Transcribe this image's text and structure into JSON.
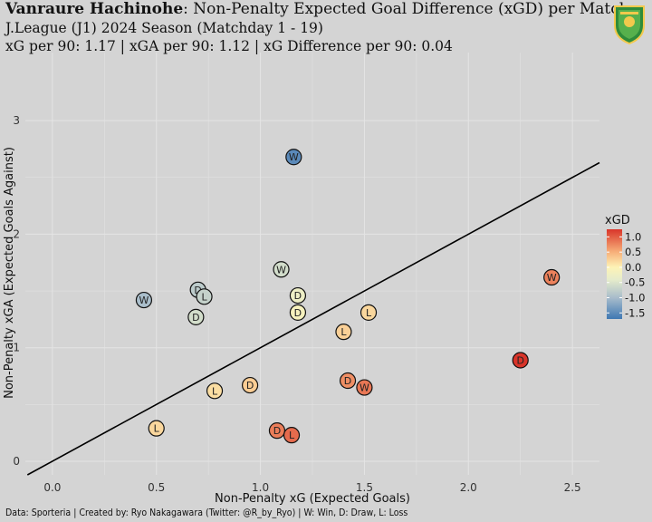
{
  "header": {
    "team": "Vanraure Hachinohe",
    "title_rest": ": Non-Penalty Expected Goal Difference (xGD) per Match",
    "subtitle1": "J.League (J1) 2024 Season (Matchday 1 - 19)",
    "subtitle2": "xG per 90: 1.17 | xGA per 90: 1.12 | xG Difference per 90: 0.04"
  },
  "caption": "Data: Sporteria | Created by: Ryo Nakagawara (Twitter: @R_by_Ryo) | W: Win, D: Draw, L: Loss",
  "colors": {
    "background": "#d4d4d4",
    "grid": "#e4e4e4",
    "line": "#000000"
  },
  "chart_data": {
    "type": "scatter",
    "xlabel": "Non-Penalty xG (Expected Goals)",
    "ylabel": "Non-Penalty xGA (Expected Goals Against)",
    "xlim": [
      -0.13,
      2.63
    ],
    "ylim": [
      -0.12,
      3.6
    ],
    "x_ticks": [
      0.0,
      0.5,
      1.0,
      1.5,
      2.0,
      2.5
    ],
    "x_tick_labels": [
      "0.0",
      "0.5",
      "1.0",
      "1.5",
      "2.0",
      "2.5"
    ],
    "y_ticks": [
      0,
      1,
      2,
      3
    ],
    "y_tick_labels": [
      "0",
      "1",
      "2",
      "3"
    ],
    "reference_line": {
      "slope": 1,
      "intercept": 0
    },
    "legend": {
      "title": "xGD",
      "position": "right",
      "ticks": [
        1.0,
        0.5,
        0.0,
        -0.5,
        -1.0,
        -1.5
      ],
      "tick_labels": [
        "1.0",
        "0.5",
        "0.0",
        "-0.5",
        "-1.0",
        "-1.5"
      ],
      "range": [
        -1.7,
        1.25
      ],
      "stops": [
        {
          "value": -1.7,
          "color": "#3f78b3"
        },
        {
          "value": -1.0,
          "color": "#a8bccb"
        },
        {
          "value": -0.4,
          "color": "#e6eccb"
        },
        {
          "value": 0.0,
          "color": "#fdf3b6"
        },
        {
          "value": 0.5,
          "color": "#f7b07a"
        },
        {
          "value": 1.25,
          "color": "#d9352a"
        }
      ]
    },
    "points": [
      {
        "x": 1.16,
        "y": 2.68,
        "result": "W"
      },
      {
        "x": 0.44,
        "y": 1.42,
        "result": "W"
      },
      {
        "x": 1.1,
        "y": 1.69,
        "result": "W"
      },
      {
        "x": 0.7,
        "y": 1.51,
        "result": "D"
      },
      {
        "x": 0.73,
        "y": 1.45,
        "result": "L"
      },
      {
        "x": 0.69,
        "y": 1.27,
        "result": "D"
      },
      {
        "x": 1.18,
        "y": 1.46,
        "result": "D"
      },
      {
        "x": 1.18,
        "y": 1.31,
        "result": "D"
      },
      {
        "x": 1.52,
        "y": 1.31,
        "result": "L"
      },
      {
        "x": 1.4,
        "y": 1.14,
        "result": "L"
      },
      {
        "x": 0.78,
        "y": 0.62,
        "result": "L"
      },
      {
        "x": 0.95,
        "y": 0.67,
        "result": "D"
      },
      {
        "x": 0.5,
        "y": 0.29,
        "result": "L"
      },
      {
        "x": 1.42,
        "y": 0.71,
        "result": "D"
      },
      {
        "x": 1.5,
        "y": 0.65,
        "result": "W"
      },
      {
        "x": 1.08,
        "y": 0.27,
        "result": "D"
      },
      {
        "x": 1.15,
        "y": 0.23,
        "result": "L"
      },
      {
        "x": 2.25,
        "y": 0.89,
        "result": "D"
      },
      {
        "x": 2.4,
        "y": 1.62,
        "result": "W"
      }
    ]
  }
}
